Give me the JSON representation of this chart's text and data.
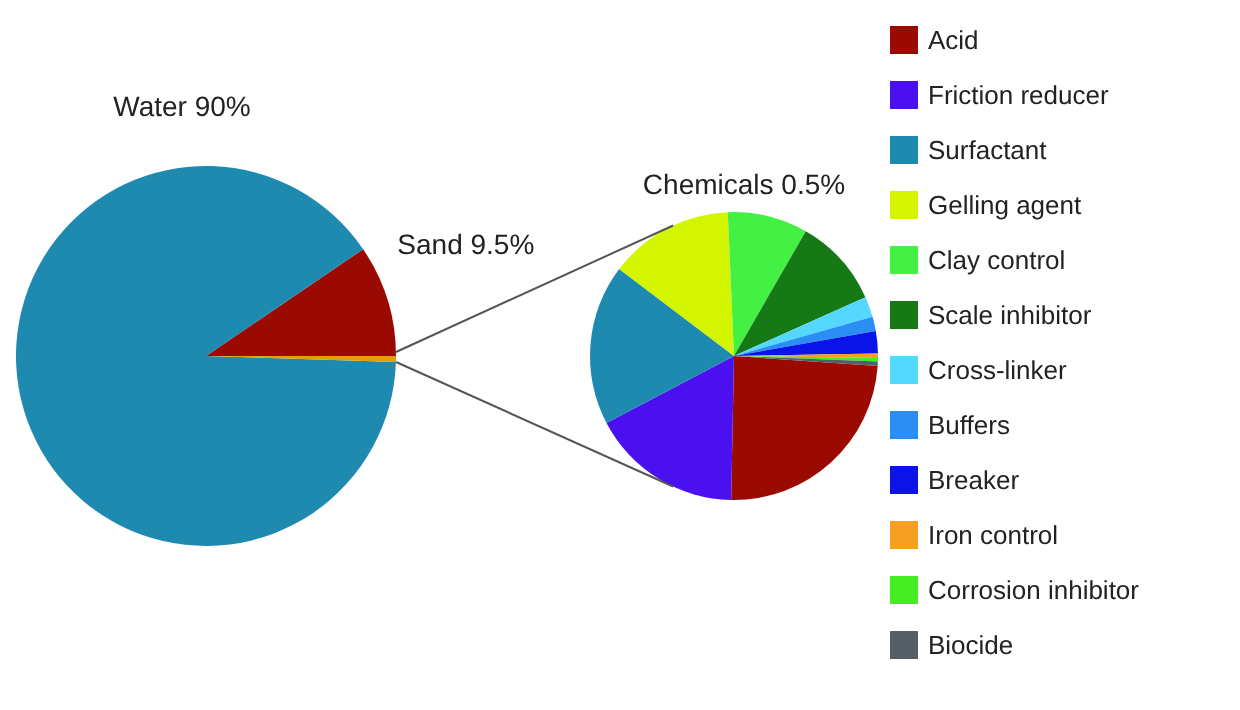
{
  "chart_data": [
    {
      "type": "pie",
      "categories": [
        "Sand 9.5%",
        "Water 90%",
        null
      ],
      "values": [
        9.5,
        90,
        0.5
      ],
      "colors": [
        "#9b0a00",
        "#1e8ab0",
        "#e0a000"
      ],
      "legend": false
    },
    {
      "type": "pie",
      "title": "Chemicals 0.5%",
      "categories": [
        "Acid",
        "Friction reducer",
        "Surfactant",
        "Gelling agent",
        "Clay control",
        "Scale inhibitor",
        "Cross-linker",
        "Buffers",
        "Breaker",
        "Iron control",
        "Corrosion inhibitor",
        "Biocide"
      ],
      "values": [
        24.2,
        17,
        18,
        14,
        9,
        10,
        2.3,
        1.6,
        2.5,
        0.5,
        0.4,
        0.5
      ],
      "colors": [
        "#9b0a00",
        "#4a10f0",
        "#1e8ab0",
        "#d4f500",
        "#44f044",
        "#157a15",
        "#55d8ff",
        "#2b8ef5",
        "#0a14e8",
        "#f5a020",
        "#44ee22",
        "#556066"
      ],
      "legend": "right"
    }
  ]
}
